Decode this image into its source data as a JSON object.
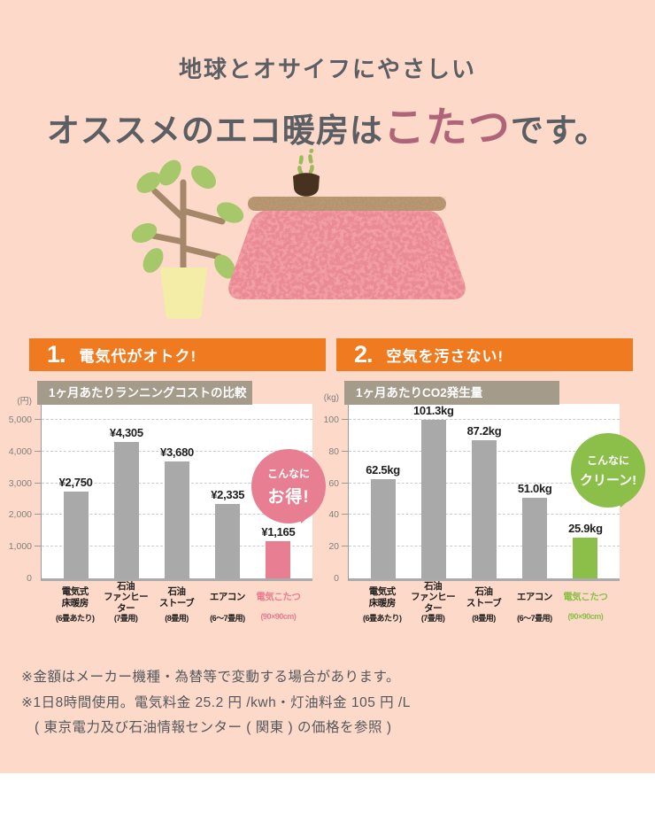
{
  "title": {
    "line1": "地球とオサイフにやさしい",
    "line2_pre": "オススメのエコ暖房は",
    "line2_highlight": "こたつ",
    "line2_post": "です。",
    "highlight_color": "#b06478"
  },
  "illustration": {
    "items": [
      "potted-plant",
      "kotatsu-table",
      "kettle",
      "steam"
    ]
  },
  "sections": [
    {
      "number": "1.",
      "heading": "電気代がオトク!"
    },
    {
      "number": "2.",
      "heading": "空気を汚さない!"
    }
  ],
  "chart_data": [
    {
      "type": "bar",
      "title": "1ヶ月あたりランニングコストの比較",
      "unit": "(円)",
      "categories": [
        [
          "電気式",
          "床暖房"
        ],
        [
          "石油",
          "ファンヒーター"
        ],
        [
          "石油",
          "ストーブ"
        ],
        [
          "エアコン"
        ],
        [
          "電気こたつ"
        ]
      ],
      "category_notes": [
        "(6畳あたり)",
        "(7畳用)",
        "(8畳用)",
        "(6〜7畳用)",
        "(90×90cm)"
      ],
      "values": [
        2750,
        4305,
        3680,
        2335,
        1165
      ],
      "value_labels": [
        "¥2,750",
        "¥4,305",
        "¥3,680",
        "¥2,335",
        "¥1,165"
      ],
      "ticks": [
        0,
        1000,
        2000,
        3000,
        4000,
        5000
      ],
      "tick_labels": [
        "0",
        "1,000",
        "2,000",
        "3,000",
        "4,000",
        "5,000"
      ],
      "ylim": [
        0,
        5500
      ],
      "grid": "dashed-horizontal",
      "bar_color": "#a9a9a9",
      "highlight_index": 4,
      "highlight_color": "#e87e92",
      "badge": {
        "line1": "こんなに",
        "line2": "お得!",
        "color": "#e87e92"
      }
    },
    {
      "type": "bar",
      "title": "1ヶ月あたりCO2発生量",
      "unit": "(kg)",
      "categories": [
        [
          "電気式",
          "床暖房"
        ],
        [
          "石油",
          "ファンヒーター"
        ],
        [
          "石油",
          "ストーブ"
        ],
        [
          "エアコン"
        ],
        [
          "電気こたつ"
        ]
      ],
      "category_notes": [
        "(6畳あたり)",
        "(7畳用)",
        "(8畳用)",
        "(6〜7畳用)",
        "(90×90cm)"
      ],
      "values": [
        62.5,
        101.3,
        87.2,
        51.0,
        25.9
      ],
      "value_labels": [
        "62.5kg",
        "101.3kg",
        "87.2kg",
        "51.0kg",
        "25.9kg"
      ],
      "ticks": [
        0,
        20,
        40,
        60,
        80,
        100
      ],
      "tick_labels": [
        "0",
        "20",
        "40",
        "60",
        "80",
        "100"
      ],
      "ylim": [
        0,
        110
      ],
      "grid": "dashed-horizontal",
      "bar_color": "#a9a9a9",
      "highlight_index": 4,
      "highlight_color": "#8cbf4a",
      "badge": {
        "line1": "こんなに",
        "line2": "クリーン!",
        "color": "#8cbf4a"
      }
    }
  ],
  "notes": [
    "※金額はメーカー機種・為替等で変動する場合があります。",
    "※1日8時間使用。電気料金 25.2 円 /kwh・灯油料金 105 円 /L",
    "( 東京電力及び石油情報センター ( 関東 ) の価格を参照 )"
  ],
  "colors": {
    "page_background": "#fcd9c8",
    "section_header": "#ef7a1f",
    "chart_title_bar": "#a49b8b",
    "bar_gray": "#a9a9a9",
    "kotatsu_pink": "#e87e92",
    "eco_green": "#8cbf4a",
    "title_text": "#5b5e63"
  }
}
